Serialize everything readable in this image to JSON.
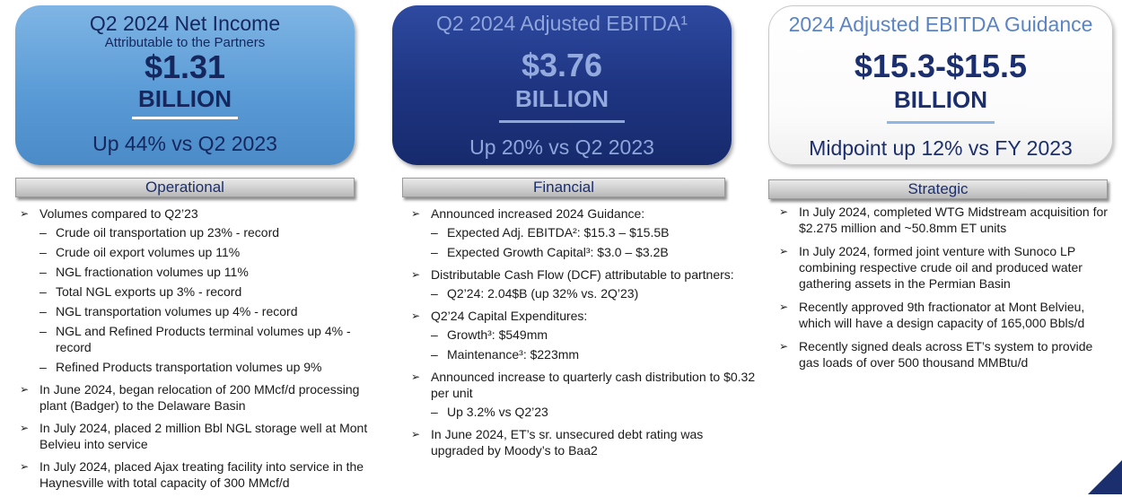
{
  "cards": {
    "net_income": {
      "title": "Q2 2024 Net Income",
      "subtitle": "Attributable to the Partners",
      "value": "$1.31",
      "unit": "BILLION",
      "footer": "Up 44% vs Q2 2023"
    },
    "ebitda": {
      "title": "Q2 2024 Adjusted EBITDA¹",
      "value": "$3.76",
      "unit": "BILLION",
      "footer": "Up 20% vs Q2 2023"
    },
    "guidance": {
      "title": "2024 Adjusted EBITDA Guidance",
      "value": "$15.3-$15.5",
      "unit": "BILLION",
      "footer": "Midpoint up 12% vs FY 2023"
    }
  },
  "sections": {
    "operational": {
      "heading": "Operational",
      "bullets": [
        {
          "text": "Volumes compared to Q2’23",
          "subs": [
            "Crude oil transportation up 23% - record",
            "Crude oil export volumes up 11%",
            "NGL fractionation volumes up 11%",
            "Total NGL exports up 3% - record",
            "NGL transportation volumes up 4% - record",
            "NGL and Refined Products terminal volumes up 4% - record",
            "Refined Products transportation volumes up 9%"
          ]
        },
        {
          "text": "In June 2024, began relocation of 200 MMcf/d processing plant (Badger) to the Delaware Basin",
          "subs": []
        },
        {
          "text": "In July 2024, placed 2 million Bbl NGL storage well at Mont Belvieu into service",
          "subs": []
        },
        {
          "text": "In July 2024, placed Ajax treating facility into service in the Haynesville with total capacity of 300 MMcf/d",
          "subs": []
        }
      ]
    },
    "financial": {
      "heading": "Financial",
      "bullets": [
        {
          "text": "Announced increased 2024 Guidance:",
          "subs": [
            "Expected Adj. EBITDA²: $15.3 – $15.5B",
            "Expected Growth Capital³: $3.0 – $3.2B"
          ]
        },
        {
          "text": "Distributable Cash Flow (DCF) attributable to partners:",
          "subs": [
            "Q2’24: 2.04$B (up 32% vs. 2Q’23)"
          ]
        },
        {
          "text": "Q2’24 Capital Expenditures:",
          "subs": [
            "Growth³: $549mm",
            "Maintenance³: $223mm"
          ]
        },
        {
          "text": "Announced increase to quarterly cash distribution to $0.32 per unit",
          "subs": [
            "Up 3.2% vs Q2’23"
          ]
        },
        {
          "text": "In June 2024, ET’s sr. unsecured debt rating was upgraded by Moody’s to Baa2",
          "subs": []
        }
      ]
    },
    "strategic": {
      "heading": "Strategic",
      "bullets": [
        {
          "text": "In July 2024, completed WTG Midstream acquisition for $2.275 million and ~50.8mm ET units",
          "subs": []
        },
        {
          "text": "In July 2024, formed joint venture with Sunoco LP combining respective crude oil and produced water gathering assets in the Permian Basin",
          "subs": []
        },
        {
          "text": "Recently approved 9th fractionator at Mont Belvieu, which will have a design capacity of 165,000 Bbls/d",
          "subs": []
        },
        {
          "text": "Recently signed deals across ET’s system to provide gas loads of over 500 thousand MMBtu/d",
          "subs": []
        }
      ]
    }
  },
  "symbols": {
    "bullet": "➢",
    "dash": "–"
  },
  "colors": {
    "navy": "#1b2e6e",
    "light_blue": "#5a9bd6",
    "dark_blue": "#1f3582"
  }
}
